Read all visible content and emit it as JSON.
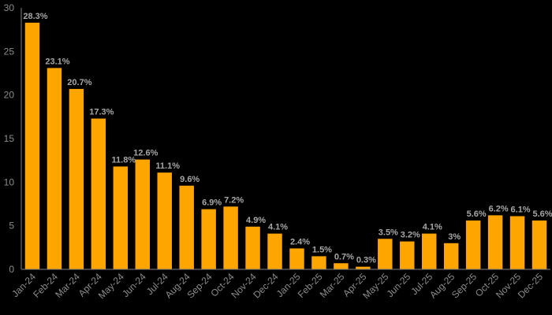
{
  "chart_data": {
    "type": "bar",
    "title": "",
    "xlabel": "",
    "ylabel": "",
    "ylim": [
      0,
      30
    ],
    "yticks": [
      0,
      5,
      10,
      15,
      20,
      25,
      30
    ],
    "grid": false,
    "legend": "none",
    "categories": [
      "Jan-24",
      "Feb-24",
      "Mar-24",
      "Apr-24",
      "May-24",
      "Jun-24",
      "Jul-24",
      "Aug-24",
      "Sep-24",
      "Oct-24",
      "Nov-24",
      "Dec-24",
      "Jan-25",
      "Feb-25",
      "Mar-25",
      "Apr-25",
      "May-25",
      "Jun-25",
      "Jul-25",
      "Aug-25",
      "Sep-25",
      "Oct-25",
      "Nov-25",
      "Dec-25"
    ],
    "values": [
      28.3,
      23.1,
      20.7,
      17.3,
      11.8,
      12.6,
      11.1,
      9.6,
      6.9,
      7.2,
      4.9,
      4.1,
      2.4,
      1.5,
      0.7,
      0.3,
      3.5,
      3.2,
      4.1,
      3,
      5.6,
      6.2,
      6.1,
      5.6
    ],
    "data_labels": [
      "28.3%",
      "23.1%",
      "20.7%",
      "17.3%",
      "11.8%",
      "12.6%",
      "11.1%",
      "9.6%",
      "6.9%",
      "7.2%",
      "4.9%",
      "4.1%",
      "2.4%",
      "1.5%",
      "0.7%",
      "0.3%",
      "3.5%",
      "3.2%",
      "4.1%",
      "3%",
      "5.6%",
      "6.2%",
      "6.1%",
      "5.6%"
    ],
    "colors": {
      "bar": "#FFA500",
      "background": "#000000",
      "axis": "#7F7F7F",
      "tick_text": "#8C8C8C",
      "data_label_text": "#A6A6A6"
    }
  }
}
